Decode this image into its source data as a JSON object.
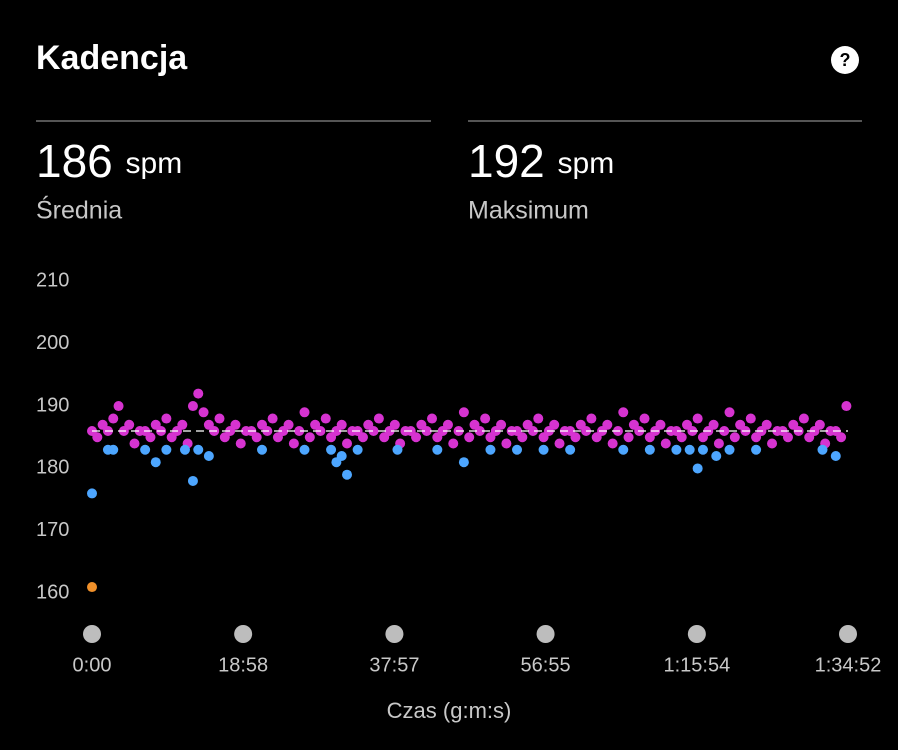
{
  "header": {
    "title": "Kadencja",
    "help": "?"
  },
  "stats": [
    {
      "value": 186,
      "unit": "spm",
      "label": "Średnia"
    },
    {
      "value": 192,
      "unit": "spm",
      "label": "Maksimum"
    }
  ],
  "chart_data": {
    "type": "scatter",
    "xlabel": "Czas (g:m:s)",
    "xlim": [
      0,
      5692
    ],
    "ylim": [
      157,
      211
    ],
    "yticks": [
      160,
      170,
      180,
      190,
      200,
      210
    ],
    "xticks": [
      {
        "value": 0,
        "label": "0:00"
      },
      {
        "value": 1138,
        "label": "18:58"
      },
      {
        "value": 2277,
        "label": "37:57"
      },
      {
        "value": 3415,
        "label": "56:55"
      },
      {
        "value": 4554,
        "label": "1:15:54"
      },
      {
        "value": 5692,
        "label": "1:34:52"
      }
    ],
    "series": [
      {
        "color": "#d633d0",
        "x": [
          0,
          40,
          80,
          120,
          160,
          200,
          240,
          280,
          320,
          360,
          400,
          440,
          480,
          520,
          560,
          600,
          640,
          680,
          720,
          760,
          800,
          840,
          880,
          920,
          960,
          1000,
          1040,
          1080,
          1120,
          1160,
          1200,
          1240,
          1280,
          1320,
          1360,
          1400,
          1440,
          1480,
          1520,
          1560,
          1600,
          1640,
          1680,
          1720,
          1760,
          1800,
          1840,
          1880,
          1920,
          1960,
          2000,
          2040,
          2080,
          2120,
          2160,
          2200,
          2240,
          2280,
          2320,
          2360,
          2400,
          2440,
          2480,
          2520,
          2560,
          2600,
          2640,
          2680,
          2720,
          2760,
          2800,
          2840,
          2880,
          2920,
          2960,
          3000,
          3040,
          3080,
          3120,
          3160,
          3200,
          3240,
          3280,
          3320,
          3360,
          3400,
          3440,
          3480,
          3520,
          3560,
          3600,
          3640,
          3680,
          3720,
          3760,
          3800,
          3840,
          3880,
          3920,
          3960,
          4000,
          4040,
          4080,
          4120,
          4160,
          4200,
          4240,
          4280,
          4320,
          4360,
          4400,
          4440,
          4480,
          4520,
          4560,
          4600,
          4640,
          4680,
          4720,
          4760,
          4800,
          4840,
          4880,
          4920,
          4960,
          5000,
          5040,
          5080,
          5120,
          5160,
          5200,
          5240,
          5280,
          5320,
          5360,
          5400,
          5440,
          5480,
          5520,
          5560,
          5600,
          5640,
          5680
        ],
        "values": [
          186,
          185,
          187,
          186,
          188,
          190,
          186,
          187,
          184,
          186,
          186,
          185,
          187,
          186,
          188,
          185,
          186,
          187,
          184,
          190,
          192,
          189,
          187,
          186,
          188,
          185,
          186,
          187,
          184,
          186,
          186,
          185,
          187,
          186,
          188,
          185,
          186,
          187,
          184,
          186,
          189,
          185,
          187,
          186,
          188,
          185,
          186,
          187,
          184,
          186,
          186,
          185,
          187,
          186,
          188,
          185,
          186,
          187,
          184,
          186,
          186,
          185,
          187,
          186,
          188,
          185,
          186,
          187,
          184,
          186,
          189,
          185,
          187,
          186,
          188,
          185,
          186,
          187,
          184,
          186,
          186,
          185,
          187,
          186,
          188,
          185,
          186,
          187,
          184,
          186,
          186,
          185,
          187,
          186,
          188,
          185,
          186,
          187,
          184,
          186,
          189,
          185,
          187,
          186,
          188,
          185,
          186,
          187,
          184,
          186,
          186,
          185,
          187,
          186,
          188,
          185,
          186,
          187,
          184,
          186,
          189,
          185,
          187,
          186,
          188,
          185,
          186,
          187,
          184,
          186,
          186,
          185,
          187,
          186,
          188,
          185,
          186,
          187,
          184,
          186,
          186,
          185,
          190
        ]
      },
      {
        "color": "#4da6ff",
        "x": [
          0,
          120,
          160,
          400,
          480,
          560,
          700,
          760,
          800,
          880,
          1280,
          1600,
          1800,
          1840,
          1880,
          1920,
          2000,
          2300,
          2600,
          2800,
          3000,
          3200,
          3400,
          3600,
          4000,
          4200,
          4400,
          4500,
          4560,
          4600,
          4700,
          4800,
          5000,
          5500,
          5600
        ],
        "values": [
          176,
          183,
          183,
          183,
          181,
          183,
          183,
          178,
          183,
          182,
          183,
          183,
          183,
          181,
          182,
          179,
          183,
          183,
          183,
          181,
          183,
          183,
          183,
          183,
          183,
          183,
          183,
          183,
          180,
          183,
          182,
          183,
          183,
          183,
          182
        ]
      },
      {
        "color": "#f0902a",
        "x": [
          0
        ],
        "values": [
          161
        ]
      }
    ]
  }
}
